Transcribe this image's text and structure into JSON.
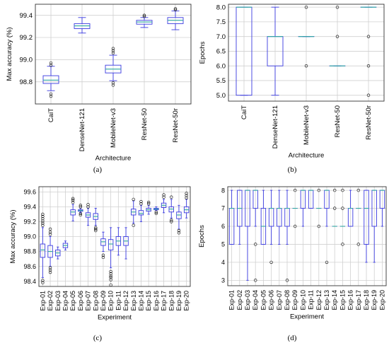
{
  "chart_data": [
    {
      "type": "box",
      "caption": "(a)",
      "xlabel": "Architecture",
      "ylabel": "Max accuracy (%)",
      "ylim": [
        98.6,
        99.5
      ],
      "yticks": [
        98.8,
        99.0,
        99.2,
        99.4
      ],
      "grid": true,
      "categories": [
        "CaiT",
        "DenseNet-121",
        "MobileNet-v3",
        "ResNet-50",
        "ResNet-50r"
      ],
      "boxes": [
        {
          "whislo": 98.72,
          "q1": 98.785,
          "med": 98.815,
          "q3": 98.855,
          "whishi": 98.94,
          "fliers": [
            98.67,
            98.69,
            98.95,
            98.97
          ]
        },
        {
          "whislo": 99.24,
          "q1": 99.28,
          "med": 99.305,
          "q3": 99.325,
          "whishi": 99.38,
          "fliers": []
        },
        {
          "whislo": 98.81,
          "q1": 98.88,
          "med": 98.915,
          "q3": 98.95,
          "whishi": 99.04,
          "fliers": [
            98.77,
            98.79,
            99.06,
            99.08,
            99.1
          ]
        },
        {
          "whislo": 99.29,
          "q1": 99.32,
          "med": 99.34,
          "q3": 99.355,
          "whishi": 99.38,
          "fliers": [
            99.39,
            99.4
          ]
        },
        {
          "whislo": 99.27,
          "q1": 99.325,
          "med": 99.355,
          "q3": 99.38,
          "whishi": 99.44,
          "fliers": [
            99.45,
            99.46
          ]
        }
      ]
    },
    {
      "type": "box",
      "caption": "(b)",
      "xlabel": "Architecture",
      "ylabel": "Epochs",
      "ylim": [
        4.8,
        8.1
      ],
      "yticks": [
        5.0,
        5.5,
        6.0,
        6.5,
        7.0,
        7.5,
        8.0
      ],
      "grid": true,
      "categories": [
        "CaiT",
        "DenseNet-121",
        "MobileNet-v3",
        "ResNet-50",
        "ResNet-50r"
      ],
      "boxes": [
        {
          "whislo": 5,
          "q1": 5,
          "med": 8,
          "q3": 8,
          "whishi": 8,
          "fliers": []
        },
        {
          "whislo": 5,
          "q1": 6,
          "med": 7,
          "q3": 7,
          "whishi": 8,
          "fliers": []
        },
        {
          "whislo": 7,
          "q1": 7,
          "med": 7,
          "q3": 7,
          "whishi": 7,
          "fliers": [
            6,
            8
          ]
        },
        {
          "whislo": 6,
          "q1": 6,
          "med": 6,
          "q3": 6,
          "whishi": 6,
          "fliers": [
            7,
            8
          ]
        },
        {
          "whislo": 8,
          "q1": 8,
          "med": 8,
          "q3": 8,
          "whishi": 8,
          "fliers": [
            5,
            6,
            7
          ]
        }
      ]
    },
    {
      "type": "box",
      "caption": "(c)",
      "xlabel": "Experiment",
      "ylabel": "Max accuracy (%)",
      "ylim": [
        98.33,
        99.67
      ],
      "yticks": [
        98.4,
        98.6,
        98.8,
        99.0,
        99.2,
        99.4,
        99.6
      ],
      "grid": true,
      "categories": [
        "Exp-01",
        "Exp-02",
        "Exp-03",
        "Exp-04",
        "Exp-05",
        "Exp-06",
        "Exp-07",
        "Exp-08",
        "Exp-09",
        "Exp-10",
        "Exp-11",
        "Exp-12",
        "Exp-13",
        "Exp-14",
        "Exp-15",
        "Exp-16",
        "Exp-17",
        "Exp-18",
        "Exp-19",
        "Exp-20"
      ],
      "boxes": [
        {
          "whislo": 98.45,
          "q1": 98.72,
          "med": 98.82,
          "q3": 98.9,
          "whishi": 99.12,
          "fliers": [
            98.38,
            98.41,
            99.15,
            99.18,
            99.21,
            99.24,
            99.27,
            99.3
          ]
        },
        {
          "whislo": 98.6,
          "q1": 98.72,
          "med": 98.8,
          "q3": 98.88,
          "whishi": 99.0,
          "fliers": [
            98.52,
            98.55,
            98.58,
            99.03,
            99.06,
            99.1
          ]
        },
        {
          "whislo": 98.7,
          "q1": 98.74,
          "med": 98.78,
          "q3": 98.82,
          "whishi": 98.86,
          "fliers": []
        },
        {
          "whislo": 98.82,
          "q1": 98.85,
          "med": 98.88,
          "q3": 98.91,
          "whishi": 98.94,
          "fliers": []
        },
        {
          "whislo": 99.21,
          "q1": 99.29,
          "med": 99.33,
          "q3": 99.36,
          "whishi": 99.43,
          "fliers": [
            99.46,
            99.49,
            99.51
          ]
        },
        {
          "whislo": 99.32,
          "q1": 99.34,
          "med": 99.35,
          "q3": 99.36,
          "whishi": 99.38,
          "fliers": [
            99.29,
            99.31,
            99.4,
            99.42
          ]
        },
        {
          "whislo": 99.15,
          "q1": 99.26,
          "med": 99.29,
          "q3": 99.32,
          "whishi": 99.38,
          "fliers": [
            99.4,
            99.43
          ]
        },
        {
          "whislo": 99.15,
          "q1": 99.23,
          "med": 99.27,
          "q3": 99.31,
          "whishi": 99.38,
          "fliers": [
            99.08,
            99.1,
            99.12
          ]
        },
        {
          "whislo": 98.8,
          "q1": 98.88,
          "med": 98.93,
          "q3": 98.97,
          "whishi": 99.06,
          "fliers": [
            98.72,
            98.75
          ]
        },
        {
          "whislo": 98.58,
          "q1": 98.82,
          "med": 98.9,
          "q3": 98.96,
          "whishi": 99.12,
          "fliers": [
            98.35,
            98.42,
            98.45,
            98.47,
            98.5,
            98.53
          ]
        },
        {
          "whislo": 98.75,
          "q1": 98.88,
          "med": 98.94,
          "q3": 99.0,
          "whishi": 99.12,
          "fliers": []
        },
        {
          "whislo": 98.7,
          "q1": 98.88,
          "med": 98.94,
          "q3": 99.0,
          "whishi": 99.12,
          "fliers": []
        },
        {
          "whislo": 99.18,
          "q1": 99.29,
          "med": 99.33,
          "q3": 99.37,
          "whishi": 99.48,
          "fliers": [
            99.15,
            99.5
          ]
        },
        {
          "whislo": 99.2,
          "q1": 99.29,
          "med": 99.31,
          "q3": 99.35,
          "whishi": 99.42,
          "fliers": [
            99.44,
            99.47
          ]
        },
        {
          "whislo": 99.3,
          "q1": 99.34,
          "med": 99.36,
          "q3": 99.38,
          "whishi": 99.42,
          "fliers": [
            99.44,
            99.46
          ]
        },
        {
          "whislo": 99.35,
          "q1": 99.36,
          "med": 99.37,
          "q3": 99.38,
          "whishi": 99.4,
          "fliers": [
            99.31,
            99.33
          ]
        },
        {
          "whislo": 99.32,
          "q1": 99.39,
          "med": 99.42,
          "q3": 99.45,
          "whishi": 99.5,
          "fliers": [
            99.53,
            99.56
          ]
        },
        {
          "whislo": 99.25,
          "q1": 99.33,
          "med": 99.37,
          "q3": 99.4,
          "whishi": 99.5,
          "fliers": [
            99.22,
            99.2,
            99.53
          ]
        },
        {
          "whislo": 99.1,
          "q1": 99.24,
          "med": 99.29,
          "q3": 99.33,
          "whishi": 99.42,
          "fliers": [
            99.05,
            99.08
          ]
        },
        {
          "whislo": 99.25,
          "q1": 99.32,
          "med": 99.36,
          "q3": 99.4,
          "whishi": 99.5,
          "fliers": [
            99.52,
            99.55,
            99.58
          ]
        }
      ]
    },
    {
      "type": "box",
      "caption": "(d)",
      "xlabel": "Experiment",
      "ylabel": "Epochs",
      "ylim": [
        2.7,
        8.2
      ],
      "yticks": [
        3,
        4,
        5,
        6,
        7,
        8
      ],
      "grid": true,
      "categories": [
        "Exp-01",
        "Exp-02",
        "Exp-03",
        "Exp-04",
        "Exp-05",
        "Exp-06",
        "Exp-07",
        "Exp-08",
        "Exp-09",
        "Exp-10",
        "Exp-11",
        "Exp-12",
        "Exp-13",
        "Exp-14",
        "Exp-15",
        "Exp-16",
        "Exp-17",
        "Exp-18",
        "Exp-19",
        "Exp-20"
      ],
      "boxes": [
        {
          "whislo": 5,
          "q1": 5,
          "med": 7,
          "q3": 7,
          "whishi": 8,
          "fliers": []
        },
        {
          "whislo": 5,
          "q1": 6,
          "med": 7,
          "q3": 8,
          "whishi": 8,
          "fliers": []
        },
        {
          "whislo": 3,
          "q1": 6,
          "med": 8,
          "q3": 8,
          "whishi": 8,
          "fliers": []
        },
        {
          "whislo": 6,
          "q1": 7,
          "med": 8,
          "q3": 8,
          "whishi": 8,
          "fliers": [
            5,
            3
          ]
        },
        {
          "whislo": 5,
          "q1": 5,
          "med": 6,
          "q3": 7,
          "whishi": 8,
          "fliers": []
        },
        {
          "whislo": 5,
          "q1": 6,
          "med": 7,
          "q3": 7,
          "whishi": 8,
          "fliers": [
            4
          ]
        },
        {
          "whislo": 5,
          "q1": 6,
          "med": 7,
          "q3": 7,
          "whishi": 8,
          "fliers": []
        },
        {
          "whislo": 5,
          "q1": 6,
          "med": 7,
          "q3": 7,
          "whishi": 8,
          "fliers": [
            3
          ]
        },
        {
          "whislo": 7,
          "q1": 7,
          "med": 7,
          "q3": 7,
          "whishi": 7,
          "fliers": [
            6,
            8
          ]
        },
        {
          "whislo": 6,
          "q1": 7,
          "med": 8,
          "q3": 8,
          "whishi": 8,
          "fliers": []
        },
        {
          "whislo": 7,
          "q1": 7,
          "med": 8,
          "q3": 8,
          "whishi": 8,
          "fliers": []
        },
        {
          "whislo": 7,
          "q1": 7,
          "med": 7,
          "q3": 7,
          "whishi": 7,
          "fliers": [
            6,
            8
          ]
        },
        {
          "whislo": 6,
          "q1": 7,
          "med": 8,
          "q3": 8,
          "whishi": 8,
          "fliers": [
            4
          ]
        },
        {
          "whislo": 6,
          "q1": 6,
          "med": 6,
          "q3": 6,
          "whishi": 6,
          "fliers": [
            7,
            8
          ]
        },
        {
          "whislo": 6,
          "q1": 6,
          "med": 6,
          "q3": 6,
          "whishi": 6,
          "fliers": [
            5,
            7,
            8
          ]
        },
        {
          "whislo": 6,
          "q1": 6,
          "med": 7,
          "q3": 7,
          "whishi": 8,
          "fliers": []
        },
        {
          "whislo": 7,
          "q1": 7,
          "med": 7,
          "q3": 7,
          "whishi": 7,
          "fliers": [
            5,
            8
          ]
        },
        {
          "whislo": 4,
          "q1": 5,
          "med": 7,
          "q3": 8,
          "whishi": 8,
          "fliers": []
        },
        {
          "whislo": 4,
          "q1": 6,
          "med": 8,
          "q3": 8,
          "whishi": 8,
          "fliers": []
        },
        {
          "whislo": 6,
          "q1": 7,
          "med": 8,
          "q3": 8,
          "whishi": 8,
          "fliers": []
        }
      ]
    }
  ],
  "colors": {
    "box": "#3a3ae0",
    "median": "#2ea8a0",
    "grid": "#d0d0d0",
    "frame": "#333333"
  }
}
